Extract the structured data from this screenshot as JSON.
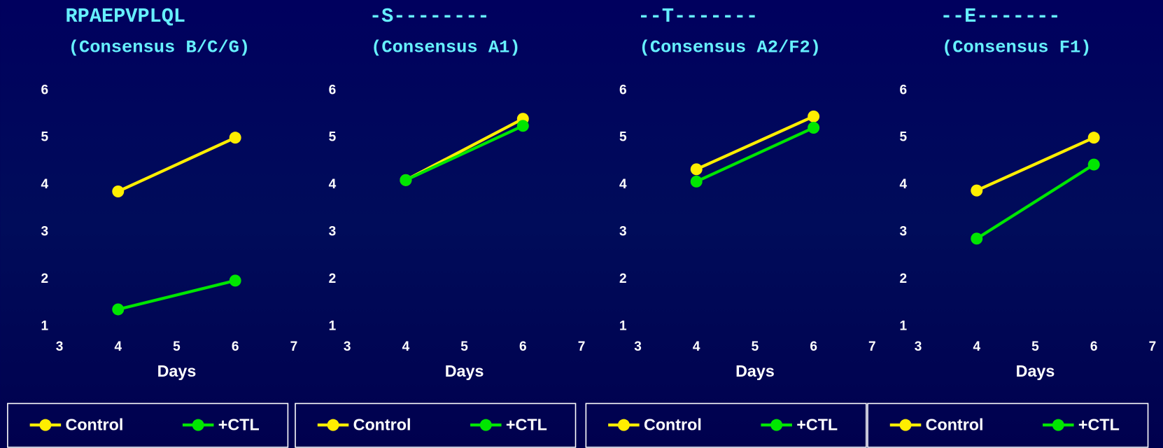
{
  "chart_data": [
    {
      "type": "line",
      "title": "RPAEPVPLQL",
      "subtitle": "(Consensus B/C/G)",
      "x_label": "Days",
      "x": [
        4,
        6
      ],
      "xlim": [
        3,
        7
      ],
      "xticks": [
        3,
        4,
        5,
        6,
        7
      ],
      "ylim": [
        1,
        6
      ],
      "yticks": [
        1,
        2,
        3,
        4,
        5,
        6
      ],
      "series": [
        {
          "name": "Control",
          "color": "#ffee00",
          "values": [
            3.86,
            5.0
          ]
        },
        {
          "name": "+CTL",
          "color": "#00e600",
          "values": [
            1.36,
            1.97
          ]
        }
      ]
    },
    {
      "type": "line",
      "title": "-S--------",
      "subtitle": "(Consensus A1)",
      "x_label": "Days",
      "x": [
        4,
        6
      ],
      "xlim": [
        3,
        7
      ],
      "xticks": [
        3,
        4,
        5,
        6,
        7
      ],
      "ylim": [
        1,
        6
      ],
      "yticks": [
        1,
        2,
        3,
        4,
        5,
        6
      ],
      "series": [
        {
          "name": "Control",
          "color": "#ffee00",
          "values": [
            4.1,
            5.4
          ]
        },
        {
          "name": "+CTL",
          "color": "#00e600",
          "values": [
            4.1,
            5.25
          ]
        }
      ]
    },
    {
      "type": "line",
      "title": "--T-------",
      "subtitle": "(Consensus A2/F2)",
      "x_label": "Days",
      "x": [
        4,
        6
      ],
      "xlim": [
        3,
        7
      ],
      "xticks": [
        3,
        4,
        5,
        6,
        7
      ],
      "ylim": [
        1,
        6
      ],
      "yticks": [
        1,
        2,
        3,
        4,
        5,
        6
      ],
      "series": [
        {
          "name": "Control",
          "color": "#ffee00",
          "values": [
            4.33,
            5.45
          ]
        },
        {
          "name": "+CTL",
          "color": "#00e600",
          "values": [
            4.07,
            5.21
          ]
        }
      ]
    },
    {
      "type": "line",
      "title": "--E-------",
      "subtitle": "(Consensus F1)",
      "x_label": "Days",
      "x": [
        4,
        6
      ],
      "xlim": [
        3,
        7
      ],
      "xticks": [
        3,
        4,
        5,
        6,
        7
      ],
      "ylim": [
        1,
        6
      ],
      "yticks": [
        1,
        2,
        3,
        4,
        5,
        6
      ],
      "series": [
        {
          "name": "Control",
          "color": "#ffee00",
          "values": [
            3.88,
            5.0
          ]
        },
        {
          "name": "+CTL",
          "color": "#00e600",
          "values": [
            2.86,
            4.43
          ]
        }
      ]
    }
  ]
}
